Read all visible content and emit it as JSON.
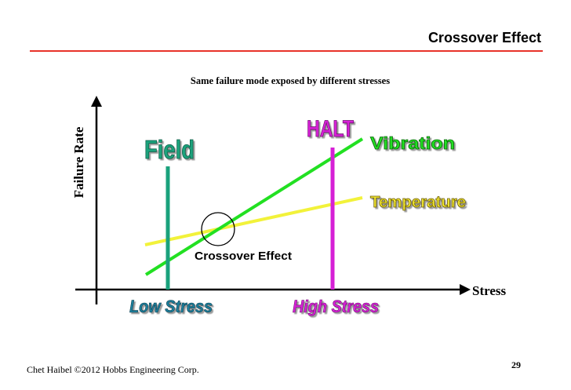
{
  "slide": {
    "title": "Crossover Effect",
    "footer": "Chet Haibel  ©2012 Hobbs Engineering Corp.",
    "page_number": "29"
  },
  "diagram": {
    "subtitle": "Same failure mode exposed by different stresses",
    "y_axis_label": "Failure Rate",
    "x_axis_label": "Stress",
    "field_label": "Field",
    "halt_label": "HALT",
    "vibration_label": "Vibration",
    "temperature_label": "Temperature",
    "crossover_label": "Crossover Effect",
    "low_stress_label": "Low Stress",
    "high_stress_label": "High Stress",
    "colors": {
      "field": "#1aa27c",
      "halt": "#d620d6",
      "vibration": "#22e022",
      "temperature": "#f2f23a",
      "title_rule": "#e8332a",
      "stress_labels": "#1a7f9c"
    }
  }
}
